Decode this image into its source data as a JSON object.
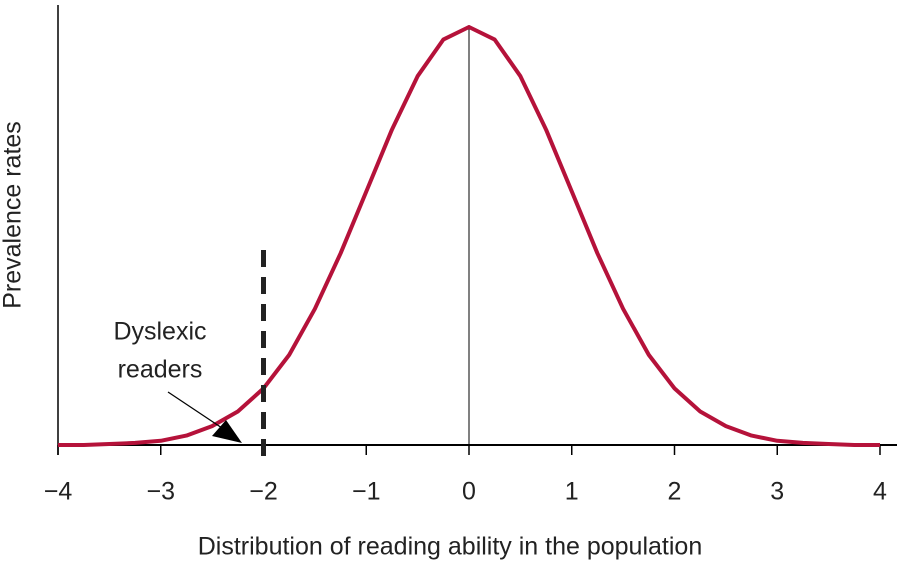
{
  "chart_data": {
    "type": "line",
    "x_label": "Distribution of reading ability in the population",
    "y_label": "Prevalence rates",
    "annotation": [
      "Dyslexic",
      "readers"
    ],
    "threshold": -2,
    "x": [
      -4,
      -3.75,
      -3.5,
      -3.25,
      -3,
      -2.75,
      -2.5,
      -2.25,
      -2,
      -1.75,
      -1.5,
      -1.25,
      -1,
      -0.75,
      -0.5,
      -0.25,
      0,
      0.25,
      0.5,
      0.75,
      1,
      1.25,
      1.5,
      1.75,
      2,
      2.25,
      2.5,
      2.75,
      3,
      3.25,
      3.5,
      3.75,
      4
    ],
    "series": [
      {
        "color": "#b5123a",
        "values": [
          0,
          0,
          0.001,
          0.002,
          0.004,
          0.009,
          0.018,
          0.032,
          0.054,
          0.086,
          0.13,
          0.183,
          0.242,
          0.301,
          0.352,
          0.387,
          0.399,
          0.387,
          0.352,
          0.301,
          0.242,
          0.183,
          0.13,
          0.086,
          0.054,
          0.032,
          0.018,
          0.009,
          0.004,
          0.002,
          0.001,
          0,
          0
        ]
      }
    ],
    "xlim": [
      -4,
      4
    ],
    "ylim": [
      0,
      0.42
    ],
    "xticks": [
      {
        "value": -4,
        "label": "−4"
      },
      {
        "value": -3,
        "label": "−3"
      },
      {
        "value": -2,
        "label": "−2"
      },
      {
        "value": -1,
        "label": "−1"
      },
      0,
      1,
      2,
      3,
      4
    ]
  }
}
